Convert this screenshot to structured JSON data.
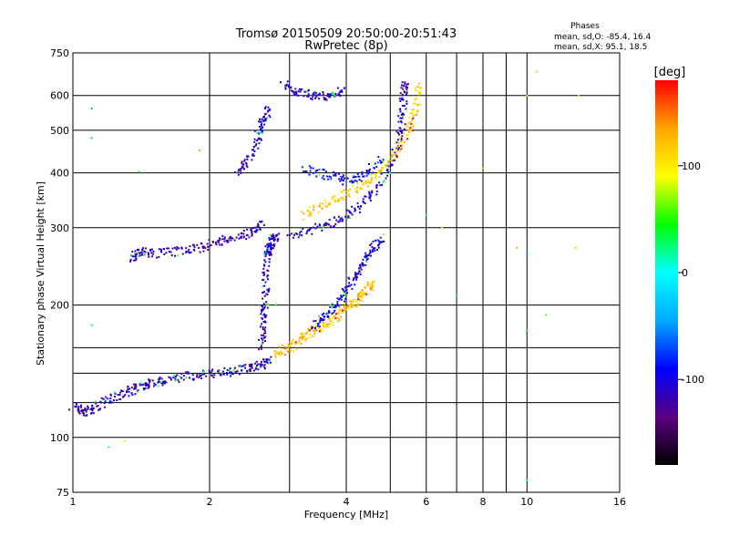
{
  "chart_data": {
    "type": "scatter",
    "title": "Tromsø 20150509 20:50:00-20:51:43",
    "subtitle": "RwPretec (8p)",
    "xlabel": "Frequency [MHz]",
    "ylabel": "Stationary phase Virtual Height [km]",
    "x_scale": "log",
    "y_scale": "log",
    "xlim": [
      1,
      16
    ],
    "ylim": [
      75,
      750
    ],
    "x_ticks": [
      "1",
      "2",
      "4",
      "6",
      "8",
      "10",
      "16"
    ],
    "x_tick_values": [
      1,
      2,
      4,
      6,
      8,
      10,
      16
    ],
    "x_grid_values": [
      1,
      2,
      3,
      4,
      5,
      6,
      7,
      8,
      9,
      10,
      16
    ],
    "y_ticks": [
      "750",
      "600",
      "500",
      "400",
      "300",
      "200",
      "100",
      "75"
    ],
    "y_tick_values": [
      750,
      600,
      500,
      400,
      300,
      200,
      100,
      75
    ],
    "y_grid_values": [
      100,
      120,
      140,
      160,
      200,
      300,
      400,
      500,
      600
    ],
    "grid": true,
    "stats": {
      "heading": "Phases",
      "line_o": "mean, sd,O: -85.4, 16.4",
      "line_x": "mean, sd,X:  95.1, 18.5"
    },
    "colorbar": {
      "label": "[deg]",
      "range": [
        -180,
        180
      ],
      "ticks": [
        "100",
        "0",
        "-100"
      ],
      "tick_values": [
        100,
        0,
        -100
      ],
      "colors": [
        "#000000",
        "#5a0080",
        "#0000ff",
        "#00aaff",
        "#00ffff",
        "#00ff00",
        "#ffff00",
        "#ffa500",
        "#ff0000"
      ]
    },
    "series": [
      {
        "trace": "low",
        "phase": -115,
        "points": [
          [
            1.0,
            118
          ],
          [
            1.05,
            114
          ],
          [
            1.1,
            116
          ],
          [
            1.2,
            122
          ],
          [
            1.3,
            126
          ],
          [
            1.4,
            130
          ],
          [
            1.5,
            133
          ],
          [
            1.6,
            135
          ],
          [
            1.8,
            138
          ],
          [
            2.0,
            139
          ],
          [
            2.2,
            141
          ],
          [
            2.4,
            143
          ],
          [
            2.6,
            146
          ],
          [
            2.7,
            150
          ]
        ]
      },
      {
        "trace": "riser",
        "phase": -110,
        "points": [
          [
            2.6,
            160
          ],
          [
            2.62,
            180
          ],
          [
            2.65,
            200
          ],
          [
            2.66,
            230
          ],
          [
            2.68,
            260
          ],
          [
            2.7,
            270
          ],
          [
            2.75,
            280
          ],
          [
            2.8,
            290
          ]
        ]
      },
      {
        "trace": "second",
        "phase": -115,
        "points": [
          [
            1.35,
            255
          ],
          [
            1.4,
            265
          ],
          [
            1.5,
            262
          ],
          [
            1.7,
            265
          ],
          [
            1.9,
            270
          ],
          [
            2.1,
            278
          ],
          [
            2.3,
            286
          ],
          [
            2.5,
            296
          ],
          [
            2.6,
            306
          ]
        ]
      },
      {
        "trace": "upper",
        "phase": -110,
        "points": [
          [
            2.3,
            400
          ],
          [
            2.45,
            430
          ],
          [
            2.55,
            480
          ],
          [
            2.62,
            520
          ],
          [
            2.7,
            560
          ]
        ]
      },
      {
        "trace": "e-o",
        "phase": 120,
        "points": [
          [
            2.8,
            155
          ],
          [
            3.0,
            160
          ],
          [
            3.2,
            168
          ],
          [
            3.4,
            175
          ],
          [
            3.6,
            180
          ],
          [
            3.8,
            188
          ],
          [
            4.0,
            198
          ],
          [
            4.2,
            205
          ],
          [
            4.4,
            215
          ],
          [
            4.6,
            225
          ]
        ]
      },
      {
        "trace": "e-x",
        "phase": -100,
        "points": [
          [
            3.4,
            180
          ],
          [
            3.6,
            188
          ],
          [
            3.8,
            200
          ],
          [
            4.0,
            215
          ],
          [
            4.2,
            235
          ],
          [
            4.4,
            250
          ],
          [
            4.6,
            270
          ],
          [
            4.8,
            285
          ]
        ]
      },
      {
        "trace": "f-o",
        "phase": -110,
        "points": [
          [
            3.0,
            290
          ],
          [
            3.4,
            298
          ],
          [
            3.8,
            310
          ],
          [
            4.2,
            330
          ],
          [
            4.6,
            360
          ],
          [
            5.0,
            410
          ],
          [
            5.2,
            460
          ],
          [
            5.3,
            520
          ],
          [
            5.35,
            600
          ],
          [
            5.4,
            640
          ]
        ]
      },
      {
        "trace": "f-x",
        "phase": 115,
        "points": [
          [
            3.2,
            320
          ],
          [
            3.6,
            340
          ],
          [
            4.0,
            360
          ],
          [
            4.4,
            380
          ],
          [
            4.8,
            410
          ],
          [
            5.2,
            450
          ],
          [
            5.5,
            500
          ],
          [
            5.7,
            560
          ],
          [
            5.8,
            640
          ]
        ]
      },
      {
        "trace": "f-top",
        "phase": -105,
        "points": [
          [
            2.9,
            640
          ],
          [
            3.1,
            610
          ],
          [
            3.4,
            600
          ],
          [
            3.7,
            600
          ],
          [
            3.95,
            615
          ]
        ]
      },
      {
        "trace": "cusp",
        "phase": -90,
        "points": [
          [
            3.2,
            410
          ],
          [
            3.6,
            395
          ],
          [
            4.0,
            385
          ],
          [
            4.4,
            395
          ],
          [
            4.8,
            430
          ]
        ]
      },
      {
        "trace": "scatter",
        "phase": 50,
        "points": [
          [
            1.1,
            560
          ],
          [
            1.1,
            480
          ],
          [
            1.1,
            180
          ],
          [
            1.2,
            95
          ],
          [
            1.3,
            98
          ],
          [
            1.4,
            402
          ],
          [
            1.9,
            450
          ],
          [
            2.8,
            200
          ],
          [
            6.0,
            320
          ],
          [
            6.5,
            300
          ],
          [
            7.0,
            210
          ],
          [
            8.0,
            410
          ],
          [
            9.5,
            270
          ],
          [
            10.0,
            600
          ],
          [
            10.0,
            260
          ],
          [
            10.0,
            175
          ],
          [
            10.0,
            80
          ],
          [
            10.5,
            680
          ],
          [
            11.0,
            190
          ],
          [
            12.8,
            270
          ],
          [
            13.0,
            600
          ]
        ]
      }
    ]
  }
}
